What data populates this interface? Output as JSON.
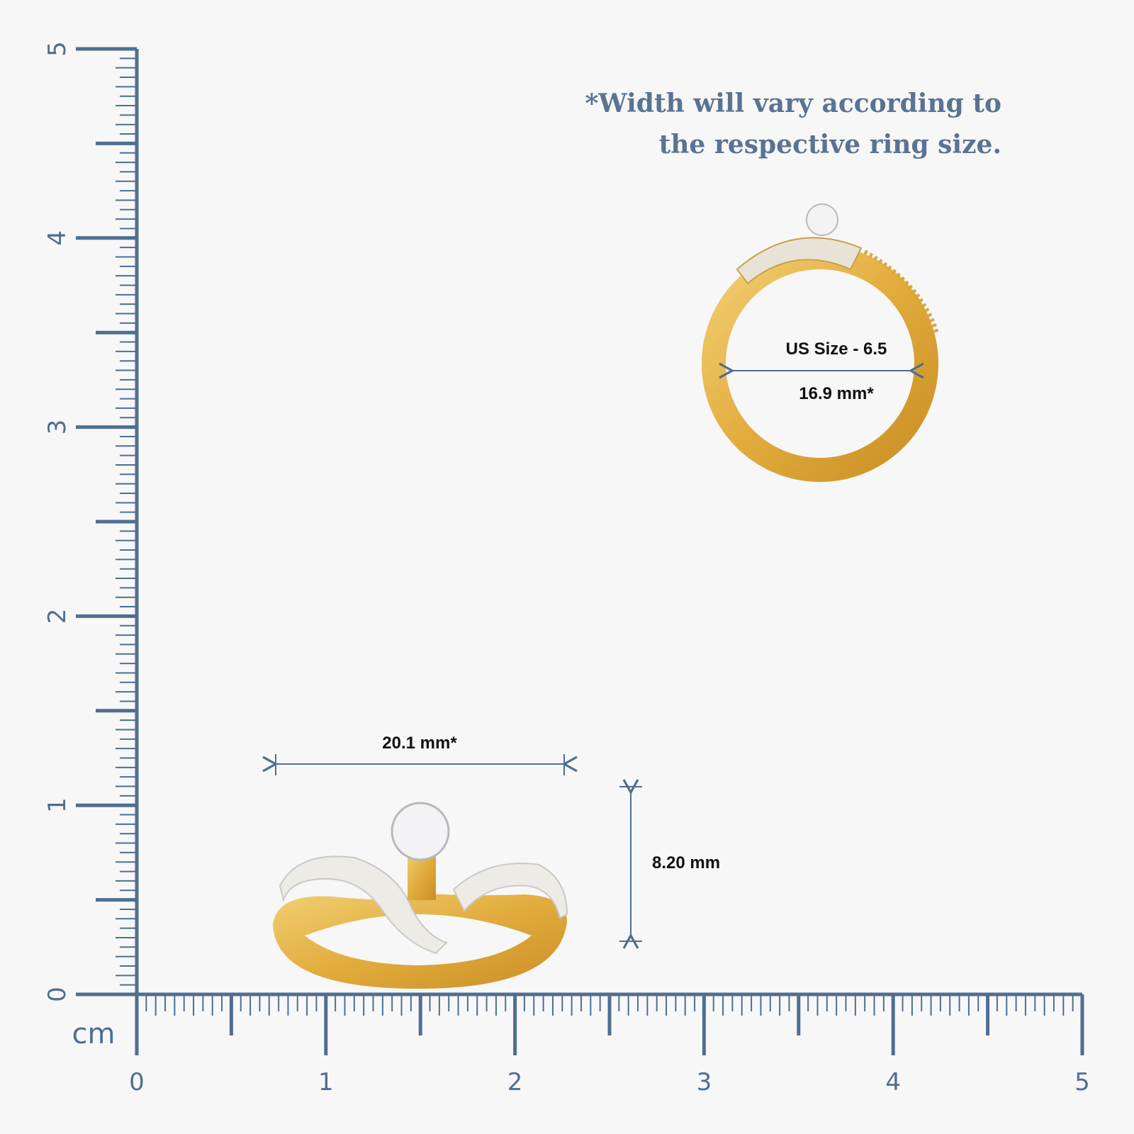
{
  "note": {
    "lines": [
      "*Width will vary according to",
      "the respective ring size."
    ]
  },
  "ruler": {
    "unit": "cm",
    "ticks": [
      0,
      1,
      2,
      3,
      4,
      5
    ]
  },
  "top_view": {
    "size_label": "US Size - 6.5",
    "diameter_label": "16.9 mm*"
  },
  "side_view": {
    "width_label": "20.1 mm*",
    "height_label": "8.20 mm"
  }
}
